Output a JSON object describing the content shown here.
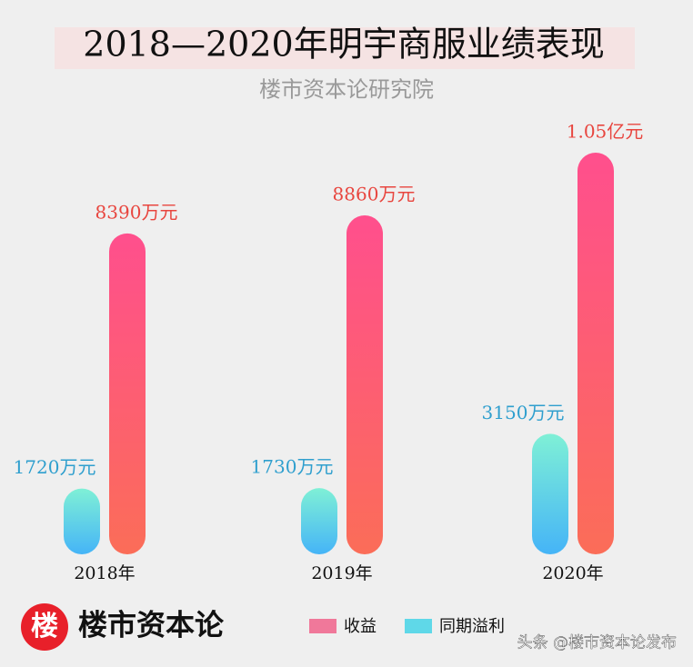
{
  "chart_data": {
    "type": "bar",
    "title": "2018—2020年明宇商服业绩表现",
    "subtitle": "楼市资本论研究院",
    "categories": [
      "2018年",
      "2019年",
      "2020年"
    ],
    "series": [
      {
        "name": "同期溢利",
        "color": "#5fd8e8",
        "values": [
          1720,
          1730,
          3150
        ],
        "value_labels": [
          "1720万元",
          "1730万元",
          "3150万元"
        ]
      },
      {
        "name": "收益",
        "color": "#f0789a",
        "values": [
          8390,
          8860,
          10500
        ],
        "value_labels": [
          "8390万元",
          "8860万元",
          "1.05亿元"
        ]
      }
    ],
    "logo": "楼",
    "brand": "楼市资本论",
    "watermark": "头条 @楼市资本论发布"
  }
}
